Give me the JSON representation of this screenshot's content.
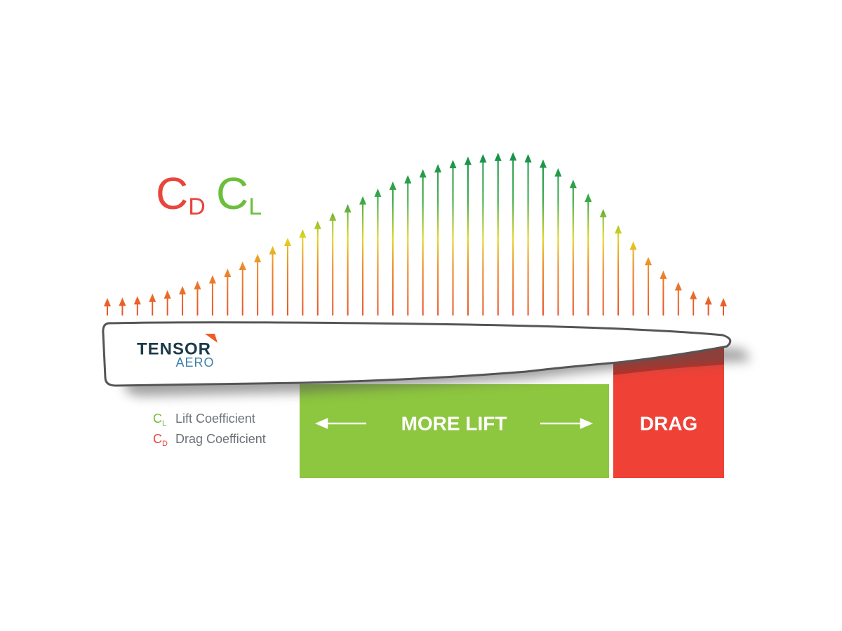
{
  "title": {
    "cd": {
      "symbol": "C",
      "subscript": "D"
    },
    "cl": {
      "symbol": "C",
      "subscript": "L"
    }
  },
  "logo": {
    "line1": "TENSOR",
    "line2": "AERO"
  },
  "legend": [
    {
      "symbol": "C",
      "subscript": "L",
      "label": "Lift Coefficient"
    },
    {
      "symbol": "C",
      "subscript": "D",
      "label": "Drag Coefficient"
    }
  ],
  "zones": {
    "lift": "MORE LIFT",
    "drag": "DRAG"
  }
}
